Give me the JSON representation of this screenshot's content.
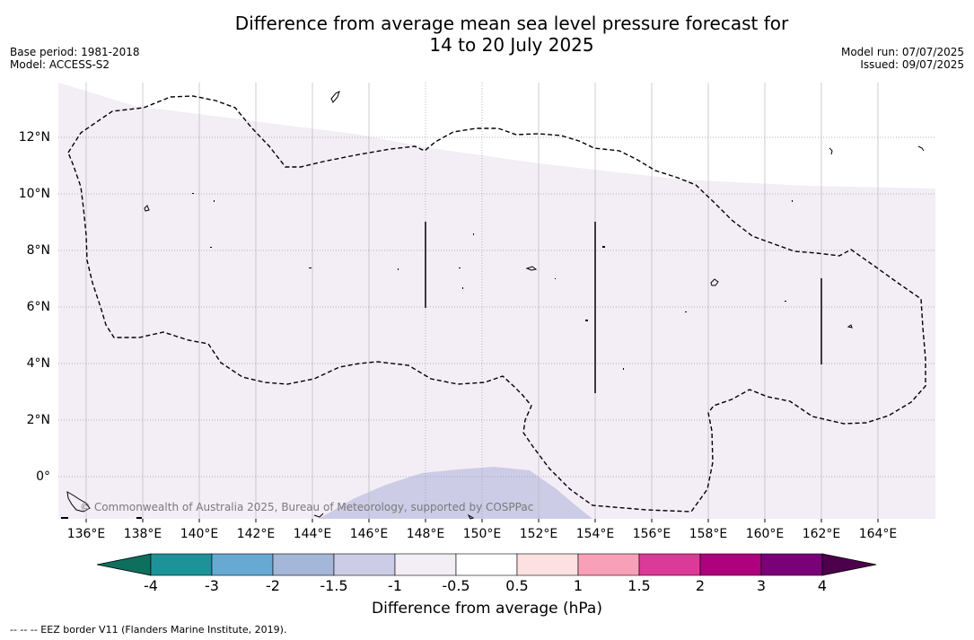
{
  "title_line1": "Difference from average mean sea level pressure forecast for",
  "title_line2": "14 to 20 July 2025",
  "base_period": "Base period: 1981-2018",
  "model": "Model: ACCESS-S2",
  "model_run": "Model run: 07/07/2025",
  "issued": "Issued: 09/07/2025",
  "x_ticks": [
    "136°E",
    "138°E",
    "140°E",
    "142°E",
    "144°E",
    "146°E",
    "148°E",
    "150°E",
    "152°E",
    "154°E",
    "156°E",
    "158°E",
    "160°E",
    "162°E",
    "164°E"
  ],
  "y_ticks": [
    "12°N",
    "10°N",
    "8°N",
    "6°N",
    "4°N",
    "2°N",
    "0°"
  ],
  "credit": "© Commonwealth of Australia 2025, Bureau of Meteorology, supported by COSPPac",
  "colorbar": {
    "labels": [
      "-4",
      "-3",
      "-2",
      "-1.5",
      "-1",
      "-0.5",
      "0.5",
      "1",
      "1.5",
      "2",
      "3",
      "4"
    ],
    "colors": [
      "#1e9299",
      "#66a9d3",
      "#a4b7d8",
      "#cccce6",
      "#f3edf6",
      "#ffffff",
      "#fde0e0",
      "#f8a0b7",
      "#da3b98",
      "#ad017e",
      "#7a0177"
    ],
    "under_color": "#0e6f5e",
    "over_color": "#4d004b",
    "title": "Difference from average (hPa)"
  },
  "footnote": "--  --  -- EEZ border V11 (Flanders Marine Institute, 2019)."
}
